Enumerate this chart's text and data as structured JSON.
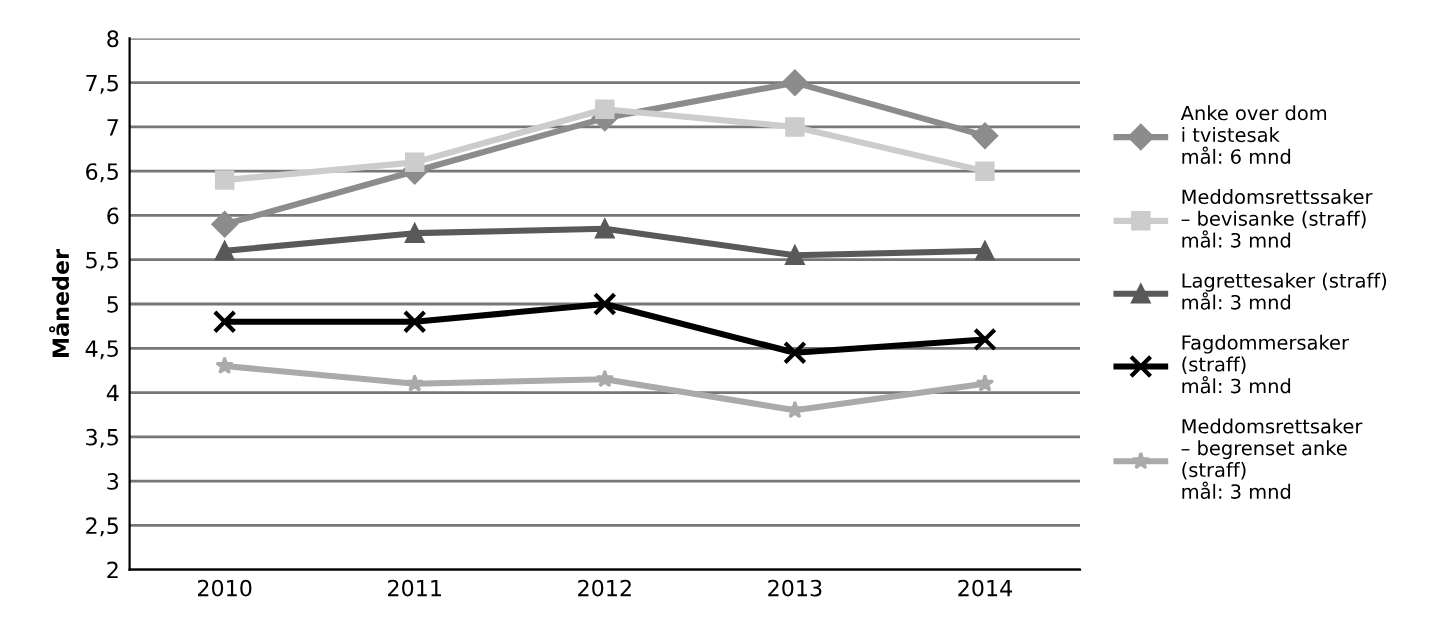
{
  "chart_data": {
    "type": "line",
    "ylabel": "Måneder",
    "categories": [
      "2010",
      "2011",
      "2012",
      "2013",
      "2014"
    ],
    "series": [
      {
        "name": "Anke over dom\ni tvistesak\nmål: 6 mnd",
        "color": "#8c8c8c",
        "marker": "diamond",
        "values": [
          5.9,
          6.5,
          7.1,
          7.5,
          6.9
        ]
      },
      {
        "name": "Meddomsrettssaker\n– bevisanke (straff)\nmål: 3 mnd",
        "color": "#cccccc",
        "marker": "square",
        "values": [
          6.4,
          6.6,
          7.2,
          7.0,
          6.5
        ]
      },
      {
        "name": "Lagrettesaker (straff)\nmål: 3 mnd",
        "color": "#595959",
        "marker": "triangle",
        "values": [
          5.6,
          5.8,
          5.85,
          5.55,
          5.6
        ]
      },
      {
        "name": "Fagdommersaker\n(straff)\nmål: 3 mnd",
        "color": "#000000",
        "marker": "cross",
        "values": [
          4.8,
          4.8,
          5.0,
          4.45,
          4.6
        ]
      },
      {
        "name": "Meddomsrettsaker\n– begrenset anke\n(straff)\nmål: 3 mnd",
        "color": "#aaaaaa",
        "marker": "star",
        "values": [
          4.3,
          4.1,
          4.15,
          3.8,
          4.1
        ]
      }
    ],
    "ylim": [
      2,
      8
    ],
    "yticks": [
      2,
      {
        "value": 2.5,
        "label": "2,5"
      },
      3,
      {
        "value": 3.5,
        "label": "3,5"
      },
      4,
      {
        "value": 4.5,
        "label": "4,5"
      },
      5,
      {
        "value": 5.5,
        "label": "5,5"
      },
      6,
      {
        "value": 6.5,
        "label": "6,5"
      },
      7,
      {
        "value": 7.5,
        "label": "7,5"
      },
      8
    ],
    "grid": "y",
    "legend": "right"
  }
}
